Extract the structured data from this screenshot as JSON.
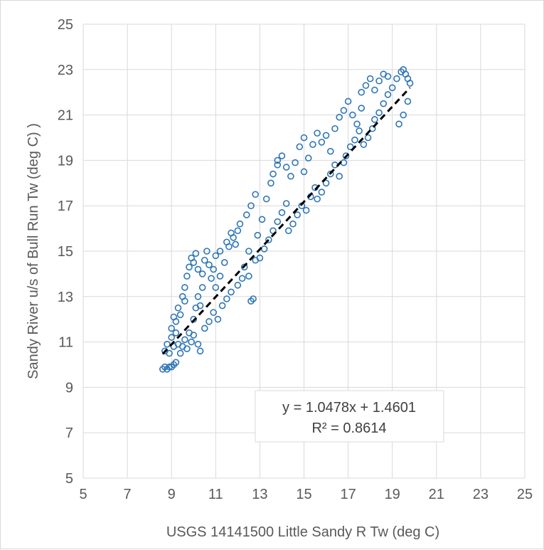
{
  "chart_data": {
    "type": "scatter",
    "title": "",
    "xlabel": "USGS 14141500 Little Sandy R Tw (deg C)",
    "ylabel": "Sandy River u/s of Bull Run Tw (deg C) )",
    "xlim": [
      5,
      25
    ],
    "ylim": [
      5,
      25
    ],
    "xticks": [
      5,
      7,
      9,
      11,
      13,
      15,
      17,
      19,
      21,
      23,
      25
    ],
    "yticks": [
      5,
      7,
      9,
      11,
      13,
      15,
      17,
      19,
      21,
      23,
      25
    ],
    "grid": true,
    "legend": "none",
    "marker": "open-circle",
    "series_color": "#2e75b6",
    "trendline": {
      "slope": 1.0478,
      "intercept": 1.4601,
      "x_range": [
        8.6,
        19.8
      ],
      "style": "dashed",
      "color": "#000000",
      "equation_label": "y = 1.0478x + 1.4601",
      "r2_label": "R² = 0.8614"
    },
    "series": [
      {
        "points": [
          [
            8.6,
            9.8
          ],
          [
            8.7,
            9.9
          ],
          [
            8.8,
            9.8
          ],
          [
            8.9,
            9.9
          ],
          [
            9.0,
            9.9
          ],
          [
            9.1,
            10.0
          ],
          [
            9.2,
            10.1
          ],
          [
            8.7,
            10.6
          ],
          [
            8.8,
            10.9
          ],
          [
            8.9,
            10.5
          ],
          [
            9.0,
            11.2
          ],
          [
            9.1,
            10.8
          ],
          [
            9.2,
            11.4
          ],
          [
            9.3,
            10.9
          ],
          [
            9.0,
            11.6
          ],
          [
            9.1,
            12.1
          ],
          [
            9.2,
            11.9
          ],
          [
            9.3,
            12.5
          ],
          [
            9.4,
            12.2
          ],
          [
            9.5,
            13.0
          ],
          [
            9.6,
            12.8
          ],
          [
            9.4,
            10.5
          ],
          [
            9.5,
            10.8
          ],
          [
            9.6,
            11.1
          ],
          [
            9.7,
            10.7
          ],
          [
            9.8,
            11.4
          ],
          [
            9.9,
            11.0
          ],
          [
            10.0,
            11.3
          ],
          [
            9.6,
            13.4
          ],
          [
            9.7,
            13.9
          ],
          [
            9.8,
            14.3
          ],
          [
            9.9,
            14.7
          ],
          [
            10.0,
            14.5
          ],
          [
            10.1,
            14.9
          ],
          [
            10.2,
            14.2
          ],
          [
            10.0,
            12.0
          ],
          [
            10.1,
            12.5
          ],
          [
            10.2,
            13.0
          ],
          [
            10.3,
            12.6
          ],
          [
            10.4,
            13.4
          ],
          [
            10.3,
            10.6
          ],
          [
            10.2,
            10.9
          ],
          [
            10.4,
            14.0
          ],
          [
            10.5,
            14.6
          ],
          [
            10.6,
            15.0
          ],
          [
            10.7,
            14.4
          ],
          [
            10.8,
            13.8
          ],
          [
            10.9,
            14.2
          ],
          [
            11.0,
            14.8
          ],
          [
            10.5,
            11.6
          ],
          [
            10.7,
            11.9
          ],
          [
            10.9,
            12.3
          ],
          [
            11.1,
            12.0
          ],
          [
            11.3,
            12.6
          ],
          [
            11.5,
            12.9
          ],
          [
            11.7,
            13.2
          ],
          [
            11.0,
            13.4
          ],
          [
            11.2,
            13.9
          ],
          [
            11.4,
            14.5
          ],
          [
            11.6,
            15.2
          ],
          [
            11.8,
            15.6
          ],
          [
            12.0,
            15.9
          ],
          [
            11.9,
            15.3
          ],
          [
            11.2,
            15.0
          ],
          [
            11.5,
            15.4
          ],
          [
            11.7,
            15.8
          ],
          [
            12.1,
            16.2
          ],
          [
            12.4,
            16.6
          ],
          [
            12.6,
            17.0
          ],
          [
            12.8,
            17.5
          ],
          [
            12.0,
            13.5
          ],
          [
            12.2,
            13.8
          ],
          [
            12.3,
            14.3
          ],
          [
            12.5,
            13.9
          ],
          [
            12.6,
            12.8
          ],
          [
            12.7,
            12.9
          ],
          [
            12.8,
            14.6
          ],
          [
            12.5,
            15.0
          ],
          [
            12.9,
            15.7
          ],
          [
            13.1,
            16.4
          ],
          [
            13.3,
            17.3
          ],
          [
            13.5,
            18.0
          ],
          [
            13.6,
            18.4
          ],
          [
            13.8,
            18.8
          ],
          [
            13.0,
            14.7
          ],
          [
            13.2,
            15.1
          ],
          [
            13.4,
            15.5
          ],
          [
            13.6,
            15.9
          ],
          [
            13.8,
            16.3
          ],
          [
            14.0,
            16.7
          ],
          [
            14.2,
            17.1
          ],
          [
            13.8,
            19.0
          ],
          [
            14.0,
            19.2
          ],
          [
            14.2,
            18.7
          ],
          [
            14.4,
            18.3
          ],
          [
            14.6,
            18.9
          ],
          [
            14.8,
            19.6
          ],
          [
            15.0,
            20.0
          ],
          [
            14.3,
            15.9
          ],
          [
            14.5,
            16.2
          ],
          [
            14.7,
            16.6
          ],
          [
            14.9,
            17.0
          ],
          [
            15.1,
            16.8
          ],
          [
            15.3,
            17.4
          ],
          [
            15.5,
            17.8
          ],
          [
            15.0,
            18.5
          ],
          [
            15.2,
            19.1
          ],
          [
            15.4,
            19.7
          ],
          [
            15.6,
            20.2
          ],
          [
            15.8,
            19.8
          ],
          [
            16.0,
            20.1
          ],
          [
            16.2,
            19.4
          ],
          [
            15.6,
            17.3
          ],
          [
            15.8,
            17.6
          ],
          [
            16.0,
            18.0
          ],
          [
            16.2,
            18.4
          ],
          [
            16.4,
            18.8
          ],
          [
            16.6,
            18.3
          ],
          [
            16.8,
            18.9
          ],
          [
            16.4,
            20.4
          ],
          [
            16.6,
            20.9
          ],
          [
            16.8,
            21.2
          ],
          [
            17.0,
            21.6
          ],
          [
            17.2,
            21.0
          ],
          [
            17.4,
            20.6
          ],
          [
            17.6,
            21.3
          ],
          [
            16.9,
            19.2
          ],
          [
            17.1,
            19.6
          ],
          [
            17.3,
            19.9
          ],
          [
            17.5,
            20.3
          ],
          [
            17.7,
            19.7
          ],
          [
            17.9,
            20.0
          ],
          [
            18.1,
            20.4
          ],
          [
            17.6,
            22.0
          ],
          [
            17.8,
            22.3
          ],
          [
            18.0,
            22.6
          ],
          [
            18.2,
            22.1
          ],
          [
            18.4,
            22.5
          ],
          [
            18.6,
            22.8
          ],
          [
            18.8,
            22.7
          ],
          [
            18.2,
            20.8
          ],
          [
            18.4,
            21.1
          ],
          [
            18.6,
            21.5
          ],
          [
            18.8,
            21.9
          ],
          [
            19.0,
            22.2
          ],
          [
            19.2,
            22.6
          ],
          [
            19.4,
            22.9
          ],
          [
            19.5,
            23.0
          ],
          [
            19.6,
            22.8
          ],
          [
            19.7,
            22.6
          ],
          [
            19.8,
            22.4
          ],
          [
            19.7,
            21.6
          ],
          [
            19.5,
            21.0
          ],
          [
            19.3,
            20.6
          ]
        ]
      }
    ]
  }
}
